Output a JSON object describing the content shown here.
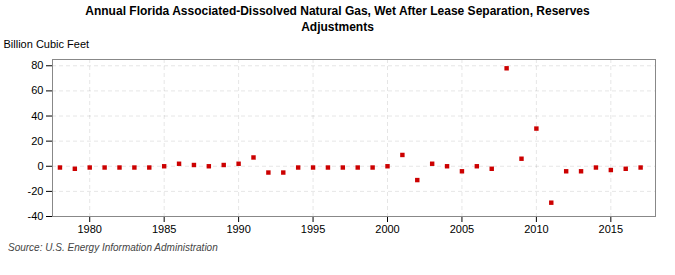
{
  "chart_data": {
    "type": "scatter",
    "title": "Annual Florida Associated-Dissolved Natural Gas, Wet After Lease Separation, Reserves\nAdjustments",
    "ylabel": "Billion Cubic Feet",
    "caption": "Source: U.S. Energy Information Administration",
    "x": [
      1978,
      1979,
      1980,
      1981,
      1982,
      1983,
      1984,
      1985,
      1986,
      1987,
      1988,
      1989,
      1990,
      1991,
      1992,
      1993,
      1994,
      1995,
      1996,
      1997,
      1998,
      1999,
      2000,
      2001,
      2002,
      2003,
      2004,
      2005,
      2006,
      2007,
      2008,
      2009,
      2010,
      2011,
      2012,
      2013,
      2014,
      2015,
      2016,
      2017
    ],
    "values": [
      -1,
      -2,
      -1,
      -1,
      -1,
      -1,
      -1,
      0,
      2,
      1,
      0,
      1,
      2,
      7,
      -5,
      -5,
      -1,
      -1,
      -1,
      -1,
      -1,
      -1,
      0,
      9,
      -11,
      2,
      0,
      -4,
      0,
      -2,
      78,
      6,
      30,
      -29,
      -4,
      -4,
      -1,
      -3,
      -2,
      -1
    ],
    "color": "#cc0000",
    "marker": "square",
    "xlim": [
      1977.5,
      2018
    ],
    "xticks": [
      1980,
      1985,
      1990,
      1995,
      2000,
      2005,
      2010,
      2015
    ],
    "ylim": [
      -40,
      85
    ],
    "yticks": [
      -40,
      -20,
      0,
      20,
      40,
      60,
      80
    ],
    "grid": true
  }
}
